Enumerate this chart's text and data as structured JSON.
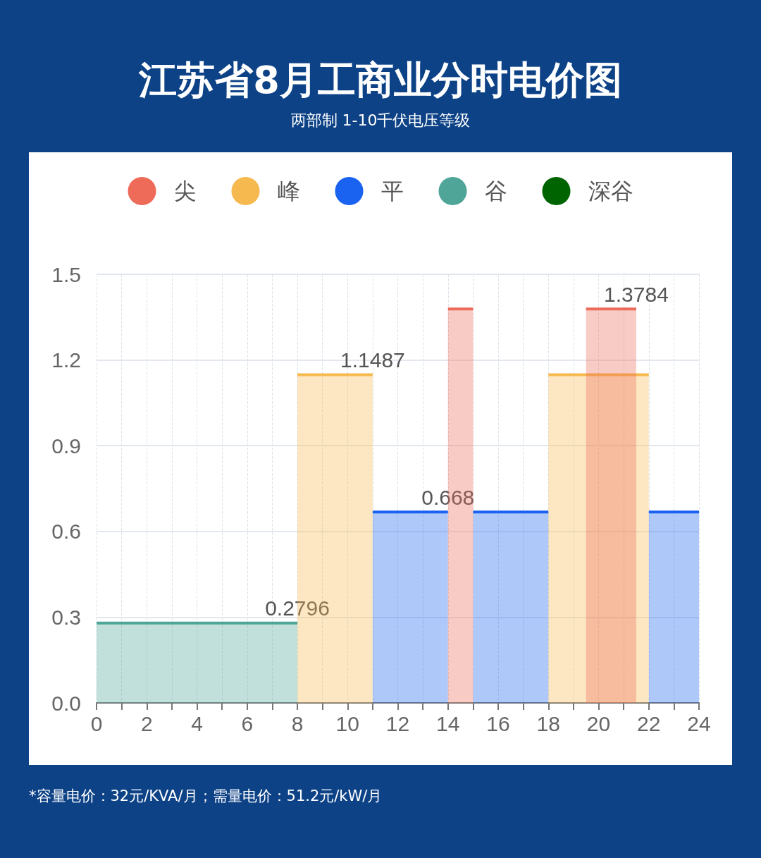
{
  "chart_data": {
    "type": "area",
    "title": "江苏省8月工商业分时电价图",
    "subtitle": "两部制 1-10千伏电压等级",
    "annotations": [
      "*容量电价：32元/KVA/月；需量电价：51.2元/kW/月"
    ],
    "series": [
      {
        "name": "尖",
        "color": "#ee6b5a",
        "x": [
          14,
          15,
          17.25,
          19.5,
          21.5
        ],
        "values": [
          1.3784,
          1.3784,
          null,
          1.3784,
          1.3784
        ],
        "value_labels": [
          null,
          null,
          null,
          null,
          "1.3784"
        ]
      },
      {
        "name": "峰",
        "color": "#f5b94f",
        "x": [
          8,
          11,
          14.5,
          18,
          22
        ],
        "values": [
          1.1487,
          1.1487,
          null,
          1.1487,
          1.1487
        ],
        "value_labels": [
          null,
          "1.1487",
          null,
          null,
          null
        ]
      },
      {
        "name": "平",
        "color": "#1a62f0",
        "x": [
          11,
          14,
          14.5,
          15,
          18,
          20,
          22,
          24
        ],
        "values": [
          0.668,
          0.668,
          null,
          0.668,
          0.668,
          null,
          0.668,
          0.668
        ],
        "value_labels": [
          null,
          "0.668",
          null,
          null,
          null,
          null,
          null,
          null
        ]
      },
      {
        "name": "谷",
        "color": "#4fa597",
        "x": [
          0,
          8
        ],
        "values": [
          0.2796,
          0.2796
        ],
        "value_labels": [
          null,
          "0.2796"
        ]
      },
      {
        "name": "深谷",
        "color": "#006400"
      }
    ],
    "xlim": [
      0,
      24
    ],
    "xticks": [
      0,
      {
        "value": 1,
        "label": null
      },
      2,
      {
        "value": 3,
        "label": null
      },
      4,
      {
        "value": 5,
        "label": null
      },
      6,
      {
        "value": 7,
        "label": null
      },
      8,
      {
        "value": 9,
        "label": null
      },
      10,
      {
        "value": 11,
        "label": null
      },
      12,
      {
        "value": 13,
        "label": null
      },
      14,
      {
        "value": 15,
        "label": null
      },
      16,
      {
        "value": 17,
        "label": null
      },
      18,
      {
        "value": 19,
        "label": null
      },
      20,
      {
        "value": 21,
        "label": null
      },
      22,
      {
        "value": 23,
        "label": null
      },
      24
    ],
    "ylim": [
      0,
      1.5
    ],
    "yticks": [
      {
        "value": 0,
        "label": "0.0"
      },
      0.3,
      0.6,
      0.9,
      1.2,
      1.5
    ],
    "grid": true,
    "legend": "top",
    "marker": "none",
    "line_style": "solid"
  }
}
